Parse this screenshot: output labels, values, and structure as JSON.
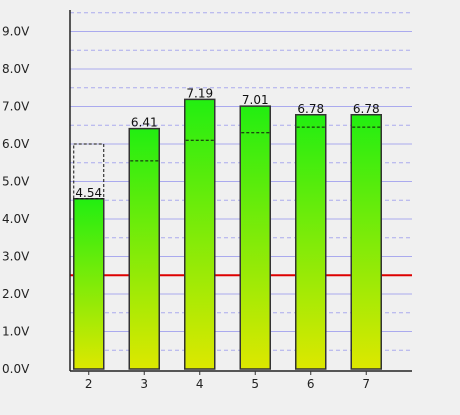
{
  "chart_data": {
    "type": "bar",
    "title": "",
    "xlabel": "",
    "ylabel": "",
    "categories": [
      "2",
      "3",
      "4",
      "5",
      "6",
      "7"
    ],
    "values": [
      4.54,
      6.41,
      7.19,
      7.01,
      6.78,
      6.78
    ],
    "value_labels": [
      "4.54",
      "6.41",
      "7.19",
      "7.01",
      "6.78",
      "6.78"
    ],
    "secondary_markers": [
      6.0,
      5.55,
      6.1,
      6.3,
      6.45,
      6.45
    ],
    "ylim": [
      0,
      9.6
    ],
    "yticks": [
      0.0,
      1.0,
      2.0,
      3.0,
      4.0,
      5.0,
      6.0,
      7.0,
      8.0,
      9.0
    ],
    "ytick_labels": [
      "0.0V",
      "1.0V",
      "2.0V",
      "3.0V",
      "4.0V",
      "5.0V",
      "6.0V",
      "7.0V",
      "8.0V",
      "9.0V"
    ],
    "minor_gridlines": [
      0.5,
      1.5,
      2.5,
      3.5,
      4.5,
      5.5,
      6.5,
      7.5,
      8.5,
      9.5
    ],
    "threshold": 2.5,
    "grid": true,
    "legend": "none",
    "colors": {
      "bar_top": "#22ee11",
      "bar_bottom": "#dde800",
      "bar_border": "#333333",
      "gridline_major": "#aaaaee",
      "gridline_minor": "#aaaaee",
      "threshold": "#dd0000",
      "background": "#f0f0f0"
    }
  }
}
